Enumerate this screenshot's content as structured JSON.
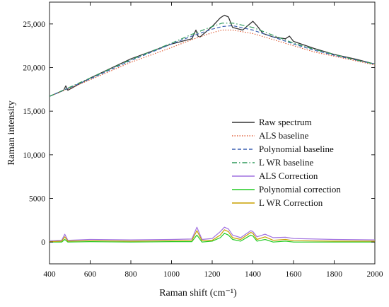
{
  "chart_data": {
    "type": "line",
    "xlabel": "Raman shift (cm⁻¹)",
    "ylabel": "Raman intensity",
    "xlim": [
      400,
      2000
    ],
    "ylim": [
      -2500,
      27500
    ],
    "x_ticks": [
      400,
      600,
      800,
      1000,
      1200,
      1400,
      1600,
      1800,
      2000
    ],
    "y_ticks": [
      {
        "value": 0,
        "label": "0"
      },
      {
        "value": 5000,
        "label": "5000"
      },
      {
        "value": 10000,
        "label": "10,000"
      },
      {
        "value": 15000,
        "label": "15,000"
      },
      {
        "value": 20000,
        "label": "20,000"
      },
      {
        "value": 25000,
        "label": "25,000"
      }
    ],
    "grid": false,
    "legend_position": "center-right",
    "series": [
      {
        "name": "Raw spectrum",
        "color": "#333333",
        "dash": "solid",
        "x": [
          400,
          470,
          480,
          490,
          600,
          800,
          1000,
          1100,
          1120,
          1130,
          1140,
          1200,
          1240,
          1260,
          1280,
          1300,
          1350,
          1400,
          1420,
          1450,
          1500,
          1560,
          1580,
          1600,
          1700,
          1800,
          1900,
          2000
        ],
        "y": [
          16700,
          17400,
          17900,
          17400,
          18800,
          21000,
          22700,
          23300,
          24300,
          23600,
          23500,
          24700,
          25700,
          26000,
          25800,
          24600,
          24300,
          25300,
          24800,
          23900,
          23500,
          23300,
          23600,
          23000,
          22200,
          21500,
          21000,
          20400
        ]
      },
      {
        "name": "ALS baseline",
        "color": "#e0603a",
        "dash": "dot",
        "x": [
          400,
          600,
          800,
          1000,
          1100,
          1200,
          1250,
          1300,
          1400,
          1500,
          1600,
          1700,
          1800,
          1900,
          2000
        ],
        "y": [
          16700,
          18600,
          20600,
          22300,
          23200,
          24000,
          24300,
          24300,
          23900,
          23200,
          22500,
          21800,
          21300,
          20800,
          20300
        ]
      },
      {
        "name": "Polynomial baseline",
        "color": "#3a5fb0",
        "dash": "dash",
        "x": [
          400,
          600,
          800,
          1000,
          1100,
          1200,
          1250,
          1300,
          1400,
          1500,
          1600,
          1700,
          1800,
          1900,
          2000
        ],
        "y": [
          16700,
          18700,
          20800,
          22700,
          23600,
          24400,
          24700,
          24800,
          24300,
          23500,
          22700,
          22000,
          21400,
          20900,
          20400
        ]
      },
      {
        "name": "L WR baseline",
        "color": "#2e9a5a",
        "dash": "dashdot",
        "x": [
          400,
          600,
          800,
          1000,
          1100,
          1200,
          1250,
          1300,
          1400,
          1500,
          1600,
          1700,
          1800,
          1900,
          2000
        ],
        "y": [
          16700,
          18800,
          20900,
          22800,
          23800,
          24700,
          25100,
          25100,
          24600,
          23700,
          22800,
          22100,
          21500,
          20900,
          20400
        ]
      },
      {
        "name": "ALS Correction",
        "color": "#a070e0",
        "dash": "solid",
        "x": [
          400,
          460,
          475,
          490,
          600,
          800,
          1000,
          1100,
          1125,
          1150,
          1200,
          1240,
          1260,
          1280,
          1300,
          1340,
          1390,
          1400,
          1420,
          1460,
          1500,
          1560,
          1600,
          1800,
          2000
        ],
        "y": [
          150,
          200,
          900,
          200,
          300,
          250,
          300,
          350,
          1700,
          300,
          400,
          1200,
          1700,
          1500,
          800,
          500,
          1300,
          1200,
          600,
          900,
          500,
          550,
          400,
          300,
          250
        ]
      },
      {
        "name": "Polynomial correction",
        "color": "#22cc22",
        "dash": "solid",
        "x": [
          400,
          460,
          475,
          490,
          600,
          800,
          1000,
          1100,
          1125,
          1150,
          1200,
          1240,
          1260,
          1280,
          1300,
          1340,
          1390,
          1400,
          1420,
          1460,
          1500,
          1560,
          1600,
          1800,
          2000
        ],
        "y": [
          0,
          0,
          300,
          0,
          50,
          0,
          50,
          50,
          800,
          0,
          100,
          500,
          1000,
          800,
          300,
          100,
          800,
          700,
          100,
          300,
          0,
          100,
          0,
          0,
          0
        ]
      },
      {
        "name": "L WR Correction",
        "color": "#c8a000",
        "dash": "solid",
        "x": [
          400,
          460,
          475,
          490,
          600,
          800,
          1000,
          1100,
          1125,
          1150,
          1200,
          1240,
          1260,
          1280,
          1300,
          1340,
          1390,
          1400,
          1420,
          1460,
          1500,
          1560,
          1600,
          1800,
          2000
        ],
        "y": [
          50,
          100,
          600,
          100,
          150,
          100,
          150,
          200,
          1300,
          150,
          200,
          800,
          1400,
          1200,
          500,
          300,
          1100,
          1000,
          300,
          600,
          200,
          300,
          150,
          100,
          100
        ]
      }
    ]
  }
}
